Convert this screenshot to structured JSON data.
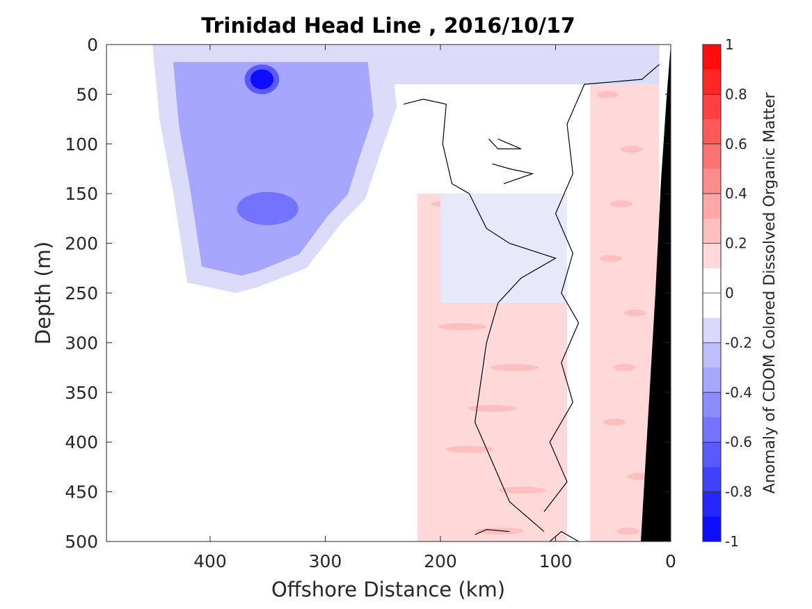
{
  "chart_data": {
    "type": "heatmap",
    "title": "Trinidad Head Line , 2016/10/17",
    "xlabel": "Offshore Distance (km)",
    "ylabel": "Depth (m)",
    "colorbar_label": "Anomaly of CDOM Colored Dissolved Organic Matter",
    "xlim": [
      490,
      0
    ],
    "ylim": [
      500,
      0
    ],
    "x_reversed": true,
    "y_reversed": true,
    "x_ticks": [
      400,
      300,
      200,
      100,
      0
    ],
    "y_ticks": [
      0,
      50,
      100,
      150,
      200,
      250,
      300,
      350,
      400,
      450,
      500
    ],
    "color_limits": [
      -1,
      1
    ],
    "colorbar_ticks": [
      1,
      0.8,
      0.6,
      0.4,
      0.2,
      0,
      -0.2,
      -0.4,
      -0.6,
      -0.8,
      -1
    ],
    "colormap_levels": 20,
    "contour_level": 0,
    "regions": [
      {
        "name": "",
        "x_range": [
          450,
          250
        ],
        "depth_range": [
          0,
          250
        ],
        "approx_anomaly": -0.3
      },
      {
        "name": "",
        "x_range": [
          370,
          340
        ],
        "depth_range": [
          20,
          50
        ],
        "approx_anomaly": -0.9
      },
      {
        "name": "",
        "x_range": [
          390,
          310
        ],
        "depth_range": [
          140,
          190
        ],
        "approx_anomaly": -0.6
      },
      {
        "name": "",
        "x_range": [
          220,
          90
        ],
        "depth_range": [
          150,
          500
        ],
        "approx_anomaly": 0.15
      },
      {
        "name": "",
        "x_range": [
          70,
          10
        ],
        "depth_range": [
          40,
          500
        ],
        "approx_anomaly": 0.15
      }
    ],
    "bathymetry_color": "#000000",
    "grid": false,
    "legend": "colorbar-right"
  },
  "colors": {
    "negative_max": "#0000ff",
    "positive_max": "#ff0000",
    "contour": "#000000"
  }
}
